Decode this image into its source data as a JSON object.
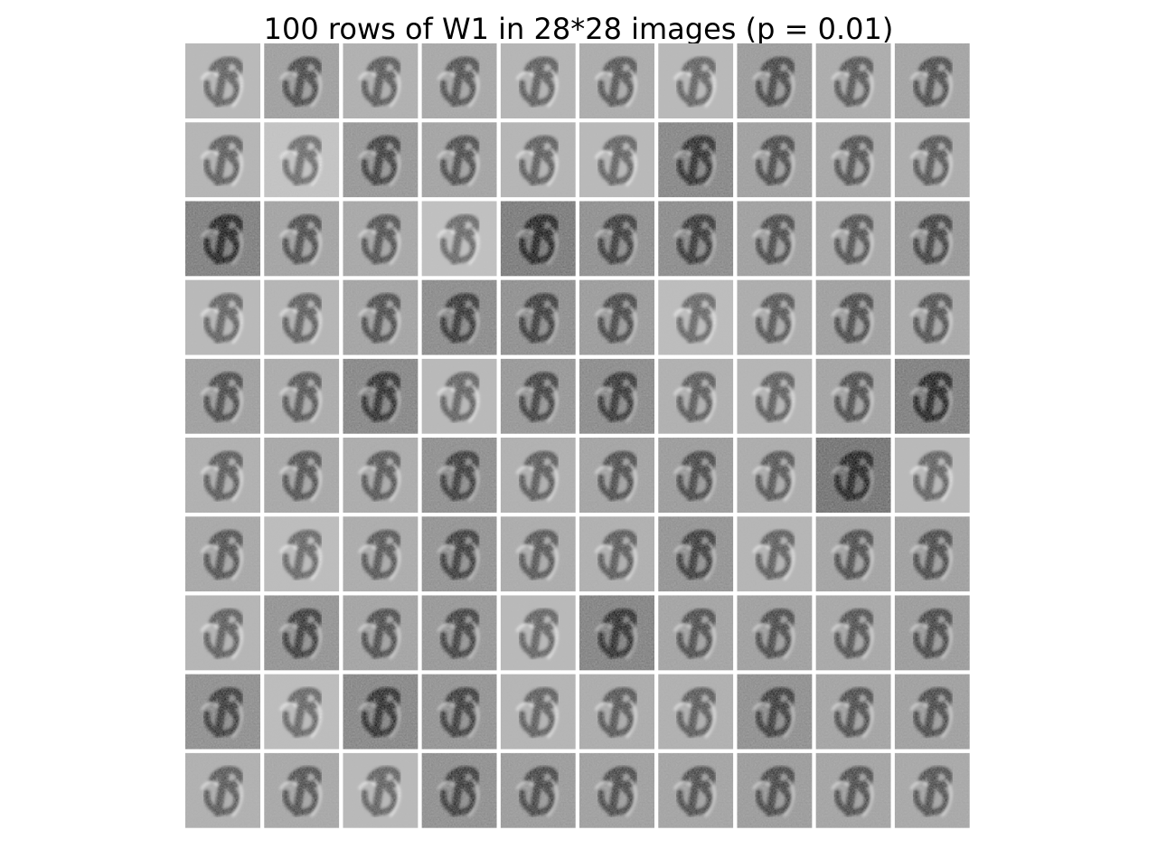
{
  "chart_data": {
    "type": "heatmap",
    "title": "100 rows of W1 in 28*28 images (p = 0.01)",
    "grid": {
      "rows": 10,
      "cols": 10
    },
    "tile_resolution": [
      28,
      28
    ],
    "colormap": "gray",
    "axes_visible": false,
    "tile_background_levels": [
      [
        0.72,
        0.6,
        0.68,
        0.64,
        0.7,
        0.66,
        0.72,
        0.58,
        0.66,
        0.62
      ],
      [
        0.7,
        0.78,
        0.56,
        0.62,
        0.7,
        0.72,
        0.48,
        0.6,
        0.64,
        0.66
      ],
      [
        0.44,
        0.62,
        0.64,
        0.76,
        0.42,
        0.52,
        0.5,
        0.6,
        0.64,
        0.56
      ],
      [
        0.72,
        0.7,
        0.62,
        0.5,
        0.52,
        0.58,
        0.74,
        0.66,
        0.6,
        0.64
      ],
      [
        0.6,
        0.66,
        0.48,
        0.72,
        0.56,
        0.5,
        0.68,
        0.7,
        0.62,
        0.44
      ],
      [
        0.68,
        0.64,
        0.66,
        0.52,
        0.68,
        0.62,
        0.58,
        0.66,
        0.38,
        0.72
      ],
      [
        0.64,
        0.74,
        0.66,
        0.54,
        0.66,
        0.68,
        0.54,
        0.7,
        0.62,
        0.6
      ],
      [
        0.7,
        0.54,
        0.62,
        0.56,
        0.72,
        0.46,
        0.62,
        0.6,
        0.64,
        0.58
      ],
      [
        0.52,
        0.74,
        0.48,
        0.54,
        0.7,
        0.66,
        0.68,
        0.52,
        0.62,
        0.6
      ],
      [
        0.68,
        0.64,
        0.72,
        0.52,
        0.58,
        0.6,
        0.62,
        0.58,
        0.62,
        0.64
      ]
    ]
  }
}
